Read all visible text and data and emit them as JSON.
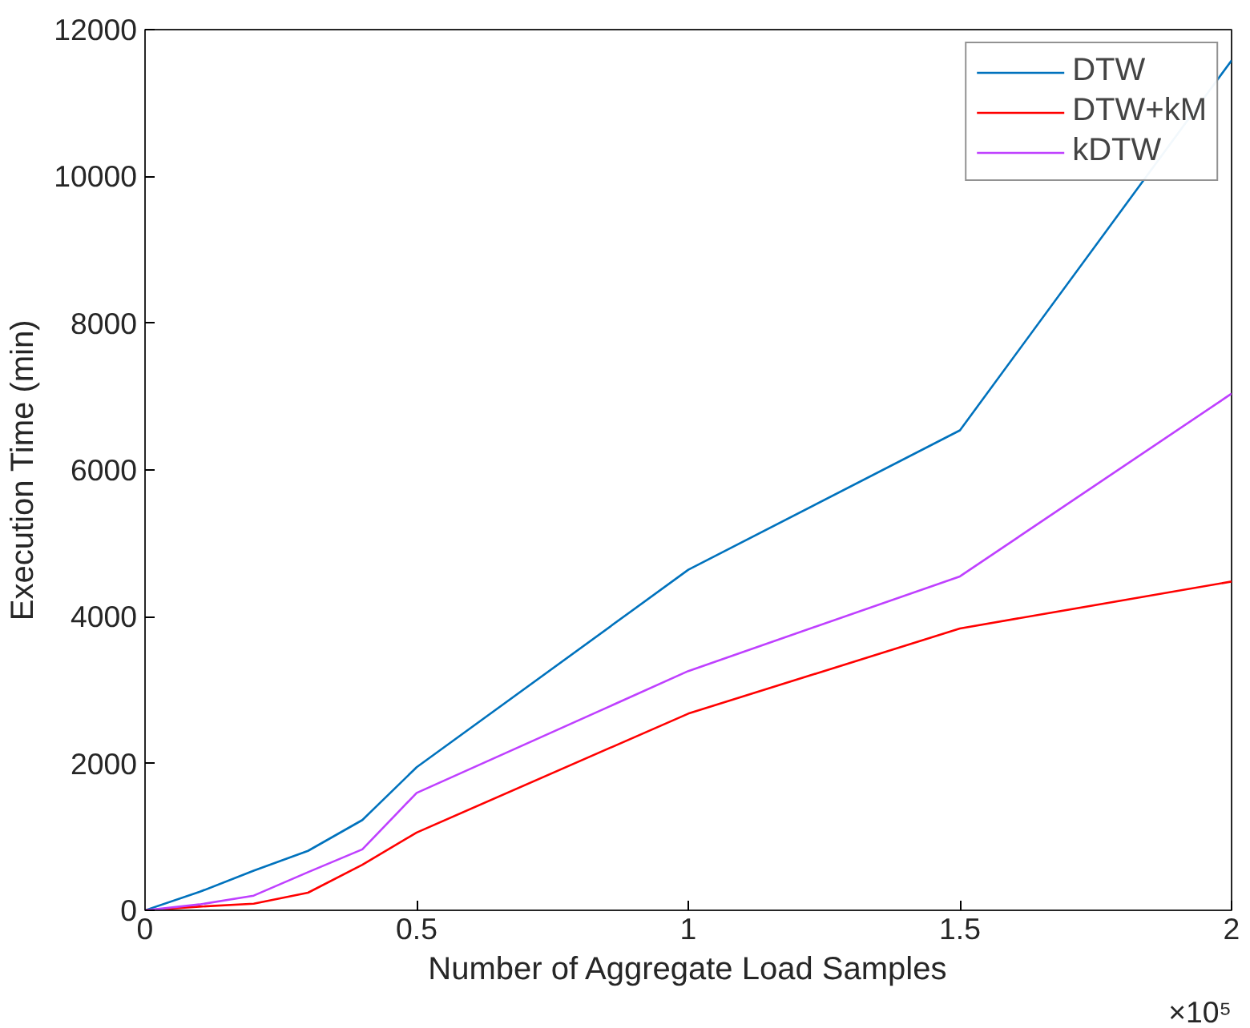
{
  "chart_data": {
    "type": "line",
    "xlabel": "Number of Aggregate Load Samples",
    "ylabel": "Execution Time (min)",
    "x": [
      0,
      0.1,
      0.2,
      0.3,
      0.4,
      0.5,
      1,
      1.5,
      2
    ],
    "series": [
      {
        "name": "DTW",
        "color": "#0072bd",
        "values": [
          0,
          250,
          540,
          810,
          1230,
          1950,
          4640,
          6540,
          11580
        ]
      },
      {
        "name": "DTW+kM",
        "color": "#ff0000",
        "values": [
          0,
          50,
          90,
          240,
          620,
          1060,
          2680,
          3840,
          4480
        ]
      },
      {
        "name": "kDTW",
        "color": "#bf40ff",
        "values": [
          0,
          80,
          200,
          520,
          830,
          1600,
          3260,
          4550,
          7040
        ]
      }
    ],
    "xlim": [
      0,
      2
    ],
    "ylim": [
      0,
      12000
    ],
    "xticks": [
      0,
      0.5,
      1,
      1.5,
      2
    ],
    "yticks": [
      0,
      2000,
      4000,
      6000,
      8000,
      10000,
      12000
    ],
    "annotations": [
      "×10⁵"
    ],
    "grid": false,
    "legend": "top right",
    "line_style": "solid",
    "marker": "none"
  }
}
